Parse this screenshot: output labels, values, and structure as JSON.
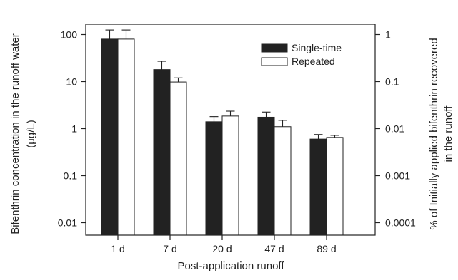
{
  "chart_data": {
    "type": "bar",
    "categories": [
      "1 d",
      "7 d",
      "20 d",
      "47 d",
      "89 d"
    ],
    "series": [
      {
        "name": "Single-time",
        "values": [
          80,
          18,
          1.4,
          1.75,
          0.6
        ],
        "error_upper": [
          125,
          27,
          1.8,
          2.25,
          0.75
        ],
        "fill": "#222222"
      },
      {
        "name": "Repeated",
        "values": [
          80,
          9.8,
          1.85,
          1.1,
          0.65
        ],
        "error_upper": [
          125,
          12,
          2.35,
          1.5,
          0.72
        ],
        "fill": "#ffffff"
      }
    ],
    "scale": "log",
    "ylim": [
      0.005,
      200
    ],
    "yticks": [
      "0.01",
      "0.1",
      "1",
      "10",
      "100"
    ],
    "y2ticks": [
      "0.0001",
      "0.001",
      "0.01",
      "0.1",
      "1"
    ],
    "xlabel": "Post-application runoff",
    "ylabel_line1": "Bifenthrin concentration in the runoff water",
    "ylabel_line2": "(μg/L)",
    "y2label_line1": "% of Initially applied bifenthrin recovered",
    "y2label_line2": "in the runoff",
    "legend_position": "top-right",
    "grid": false
  }
}
